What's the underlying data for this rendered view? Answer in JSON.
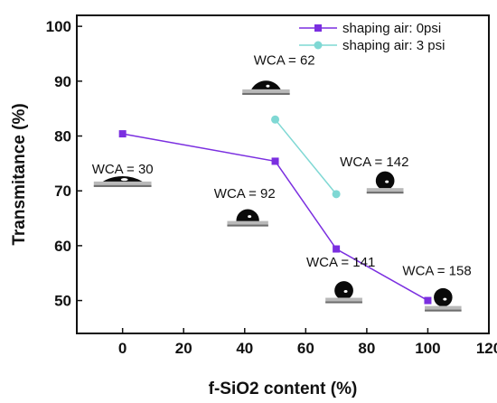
{
  "chart_data": {
    "type": "line",
    "title": "",
    "xlabel": "f-SiO2 content (%)",
    "ylabel": "Transmitance (%)",
    "xlim": [
      -15,
      120
    ],
    "ylim": [
      44,
      102
    ],
    "xticks": [
      "0",
      "20",
      "40",
      "60",
      "80",
      "100",
      "120"
    ],
    "yticks": [
      "50",
      "60",
      "70",
      "80",
      "90",
      "100"
    ],
    "grid": false,
    "legend": "top-right",
    "series": [
      {
        "name": "shaping air: 0psi",
        "color": "#7b2fe0",
        "marker": "square",
        "x": [
          0,
          50,
          70,
          100
        ],
        "y": [
          80.4,
          75.4,
          59.4,
          50.0
        ]
      },
      {
        "name": "shaping air: 3 psi",
        "color": "#7fd8d4",
        "marker": "circle",
        "x": [
          50,
          70
        ],
        "y": [
          83.0,
          69.4
        ]
      }
    ],
    "annotations": [
      {
        "label": "WCA = 30",
        "x": 0,
        "y": 73.2
      },
      {
        "label": "WCA = 92",
        "x": 40,
        "y": 68.7
      },
      {
        "label": "WCA = 62",
        "x": 53,
        "y": 93.0
      },
      {
        "label": "WCA = 142",
        "x": 82.5,
        "y": 74.5
      },
      {
        "label": "WCA = 141",
        "x": 71.5,
        "y": 56.2
      },
      {
        "label": "WCA = 158",
        "x": 103,
        "y": 54.6
      }
    ],
    "droplet_images": [
      {
        "label": "droplet-wca-30",
        "x": 0,
        "y": 71.7,
        "wca": 30
      },
      {
        "label": "droplet-wca-92",
        "x": 41,
        "y": 64.5,
        "wca": 92
      },
      {
        "label": "droplet-wca-62",
        "x": 47,
        "y": 88.5,
        "wca": 62
      },
      {
        "label": "droplet-wca-142",
        "x": 86,
        "y": 70.5,
        "wca": 142
      },
      {
        "label": "droplet-wca-141",
        "x": 72.5,
        "y": 50.5,
        "wca": 141
      },
      {
        "label": "droplet-wca-158",
        "x": 105,
        "y": 49.0,
        "wca": 158
      }
    ]
  }
}
